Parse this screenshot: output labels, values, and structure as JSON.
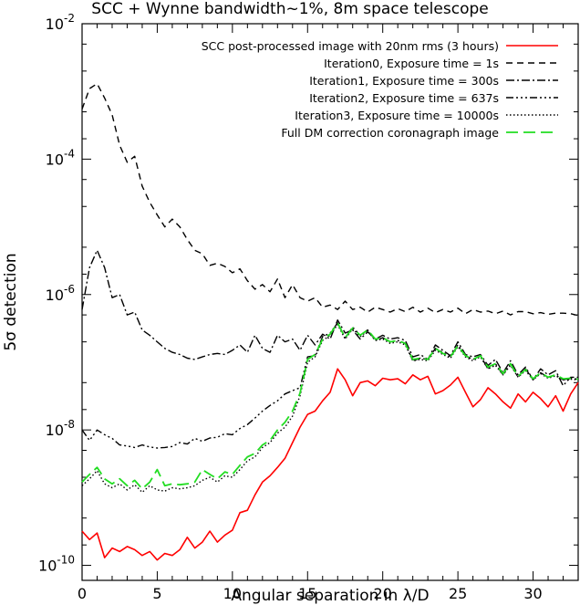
{
  "chart_data": {
    "type": "line",
    "title": "SCC + Wynne bandwidth~1%, 8m space telescope",
    "xlabel": "Angular separation in λ/D",
    "ylabel": "5σ detection",
    "xlim": [
      0,
      33
    ],
    "ylim": [
      6e-11,
      0.01
    ],
    "yscale": "log",
    "x_ticks": [
      0,
      5,
      10,
      15,
      20,
      25,
      30
    ],
    "x_tick_labels": [
      "0",
      "5",
      "10",
      "15",
      "20",
      "25",
      "30"
    ],
    "y_ticks": [
      1e-10,
      1e-08,
      1e-06,
      0.0001,
      0.01
    ],
    "y_tick_labels": [
      {
        "base": "10",
        "exp": "-10"
      },
      {
        "base": "10",
        "exp": "-8"
      },
      {
        "base": "10",
        "exp": "-6"
      },
      {
        "base": "10",
        "exp": "-4"
      },
      {
        "base": "10",
        "exp": "-2"
      }
    ],
    "legend_position": "top-right",
    "grid": false,
    "series": [
      {
        "name": "SCC post-processed image with 20nm rms (3 hours)",
        "color": "#ff0000",
        "style": "solid",
        "x": [
          0,
          0.5,
          1,
          1.5,
          2,
          2.5,
          3,
          3.5,
          4,
          4.5,
          5,
          5.5,
          6,
          6.5,
          7,
          7.5,
          8,
          8.5,
          9,
          9.5,
          10,
          10.5,
          11,
          11.5,
          12,
          12.5,
          13,
          13.5,
          14,
          14.5,
          15,
          15.5,
          16,
          16.5,
          17,
          17.5,
          18,
          18.5,
          19,
          19.5,
          20,
          20.5,
          21,
          21.5,
          22,
          22.5,
          23,
          23.5,
          24,
          24.5,
          25,
          25.5,
          26,
          26.5,
          27,
          27.5,
          28,
          28.5,
          29,
          29.5,
          30,
          30.5,
          31,
          31.5,
          32,
          32.5,
          33
        ],
        "y": [
          3.2e-10,
          2.4e-10,
          3e-10,
          1.3e-10,
          1.8e-10,
          1.6e-10,
          1.9e-10,
          1.7e-10,
          1.4e-10,
          1.6e-10,
          1.2e-10,
          1.5e-10,
          1.4e-10,
          1.7e-10,
          2.6e-10,
          1.8e-10,
          2.2e-10,
          3.2e-10,
          2.2e-10,
          2.8e-10,
          3.3e-10,
          6e-10,
          6.5e-10,
          1.1e-09,
          1.7e-09,
          2.1e-09,
          2.8e-09,
          3.8e-09,
          6.5e-09,
          1.1e-08,
          1.7e-08,
          1.9e-08,
          2.7e-08,
          3.6e-08,
          8e-08,
          5.5e-08,
          3.2e-08,
          5e-08,
          5.3e-08,
          4.5e-08,
          5.8e-08,
          5.5e-08,
          5.7e-08,
          4.8e-08,
          6.5e-08,
          5.5e-08,
          6.2e-08,
          3.4e-08,
          3.8e-08,
          4.6e-08,
          6e-08,
          3.6e-08,
          2.2e-08,
          2.8e-08,
          4.2e-08,
          3.4e-08,
          2.6e-08,
          2.1e-08,
          3.4e-08,
          2.6e-08,
          3.6e-08,
          2.9e-08,
          2.2e-08,
          3.2e-08,
          1.9e-08,
          3.4e-08,
          5e-08
        ]
      },
      {
        "name": "Iteration0, Exposure time = 1s",
        "color": "#000000",
        "style": "dash",
        "x": [
          0,
          0.5,
          1,
          1.5,
          2,
          2.5,
          3,
          3.5,
          4,
          4.5,
          5,
          5.5,
          6,
          6.5,
          7,
          7.5,
          8,
          8.5,
          9,
          9.5,
          10,
          10.5,
          11,
          11.5,
          12,
          12.5,
          13,
          13.5,
          14,
          14.5,
          15,
          15.5,
          16,
          16.5,
          17,
          17.5,
          18,
          18.5,
          19,
          19.5,
          20,
          20.5,
          21,
          21.5,
          22,
          22.5,
          23,
          23.5,
          24,
          24.5,
          25,
          25.5,
          26,
          26.5,
          27,
          27.5,
          28,
          28.5,
          29,
          29.5,
          30,
          30.5,
          31,
          31.5,
          32,
          32.5,
          33
        ],
        "y": [
          0.00055,
          0.0011,
          0.0013,
          0.0008,
          0.00045,
          0.00016,
          9e-05,
          0.00011,
          4e-05,
          2.3e-05,
          1.5e-05,
          1e-05,
          1.3e-05,
          1e-05,
          6.5e-06,
          4.5e-06,
          4e-06,
          2.7e-06,
          2.9e-06,
          2.6e-06,
          2.1e-06,
          2.4e-06,
          1.6e-06,
          1.2e-06,
          1.4e-06,
          1.1e-06,
          1.7e-06,
          9e-07,
          1.4e-06,
          9e-07,
          8e-07,
          9e-07,
          6.5e-07,
          7e-07,
          6e-07,
          8e-07,
          6e-07,
          6.5e-07,
          5.5e-07,
          6.5e-07,
          6e-07,
          5.5e-07,
          6.2e-07,
          5.6e-07,
          6.5e-07,
          5.5e-07,
          6.3e-07,
          5.4e-07,
          6e-07,
          5.5e-07,
          6.3e-07,
          5.2e-07,
          6e-07,
          5.5e-07,
          5.7e-07,
          5.2e-07,
          5.7e-07,
          5e-07,
          5.6e-07,
          5.6e-07,
          5.2e-07,
          5.4e-07,
          5.1e-07,
          5.3e-07,
          5.3e-07,
          5.2e-07,
          4.9e-07
        ]
      },
      {
        "name": "Iteration1, Exposure time = 300s",
        "color": "#000000",
        "style": "dashdot",
        "x": [
          0,
          0.5,
          1,
          1.5,
          2,
          2.5,
          3,
          3.5,
          4,
          4.5,
          5,
          5.5,
          6,
          6.5,
          7,
          7.5,
          8,
          8.5,
          9,
          9.5,
          10,
          10.5,
          11,
          11.5,
          12,
          12.5,
          13,
          13.5,
          14,
          14.5,
          15,
          15.5,
          16,
          16.5,
          17,
          17.5,
          18,
          18.5,
          19,
          19.5,
          20,
          20.5,
          21,
          21.5,
          22,
          22.5,
          23,
          23.5,
          24,
          24.5,
          25,
          25.5,
          26,
          26.5,
          27,
          27.5,
          28,
          28.5,
          29,
          29.5,
          30,
          30.5,
          31,
          31.5,
          32,
          32.5,
          33
        ],
        "y": [
          6e-07,
          2.5e-06,
          4.5e-06,
          2.5e-06,
          9e-07,
          1e-06,
          5e-07,
          5.5e-07,
          3e-07,
          2.5e-07,
          2e-07,
          1.6e-07,
          1.4e-07,
          1.3e-07,
          1.15e-07,
          1.1e-07,
          1.2e-07,
          1.3e-07,
          1.35e-07,
          1.3e-07,
          1.5e-07,
          1.8e-07,
          1.4e-07,
          2.5e-07,
          1.6e-07,
          1.4e-07,
          2.5e-07,
          2e-07,
          2.2e-07,
          1.5e-07,
          2.5e-07,
          1.8e-07,
          2.6e-07,
          2.2e-07,
          4.2e-07,
          2.7e-07,
          3e-07,
          2.2e-07,
          2.8e-07,
          2.2e-07,
          2.5e-07,
          2.2e-07,
          2.3e-07,
          2.1e-07,
          1.2e-07,
          1.3e-07,
          1.1e-07,
          1.8e-07,
          1.5e-07,
          1.25e-07,
          2e-07,
          1.3e-07,
          1.2e-07,
          1.3e-07,
          9e-08,
          1.1e-07,
          7e-08,
          1.05e-07,
          6.5e-08,
          8.5e-08,
          5.5e-08,
          8e-08,
          6.5e-08,
          7.5e-08,
          4.5e-08,
          6e-08,
          6e-08
        ]
      },
      {
        "name": "Iteration2, Exposure time =  637s",
        "color": "#000000",
        "style": "dashdotdotdot",
        "x": [
          0,
          0.5,
          1,
          1.5,
          2,
          2.5,
          3,
          3.5,
          4,
          4.5,
          5,
          5.5,
          6,
          6.5,
          7,
          7.5,
          8,
          8.5,
          9,
          9.5,
          10,
          10.5,
          11,
          11.5,
          12,
          12.5,
          13,
          13.5,
          14,
          14.5,
          15,
          15.5,
          16,
          16.5,
          17,
          17.5,
          18,
          18.5,
          19,
          19.5,
          20,
          20.5,
          21,
          21.5,
          22,
          22.5,
          23,
          23.5,
          24,
          24.5,
          25,
          25.5,
          26,
          26.5,
          27,
          27.5,
          28,
          28.5,
          29,
          29.5,
          30,
          30.5,
          31,
          31.5,
          32,
          32.5,
          33
        ],
        "y": [
          1e-08,
          7e-09,
          1e-08,
          8.5e-09,
          7.5e-09,
          6e-09,
          5.8e-09,
          5.5e-09,
          6e-09,
          5.6e-09,
          5.4e-09,
          5.5e-09,
          5.7e-09,
          6.5e-09,
          6.2e-09,
          7.5e-09,
          6.8e-09,
          7.6e-09,
          7.8e-09,
          8.8e-09,
          8.5e-09,
          1.05e-08,
          1.2e-08,
          1.5e-08,
          1.9e-08,
          2.3e-08,
          2.7e-08,
          3.4e-08,
          3.8e-08,
          4.2e-08,
          1.2e-07,
          1.25e-07,
          2.4e-07,
          2.7e-07,
          3.8e-07,
          2.3e-07,
          3.3e-07,
          2.5e-07,
          3e-07,
          2.1e-07,
          2.3e-07,
          2e-07,
          2.1e-07,
          1.9e-07,
          1.05e-07,
          1.15e-07,
          1.1e-07,
          1.6e-07,
          1.4e-07,
          1.2e-07,
          1.8e-07,
          1.25e-07,
          1.1e-07,
          1.25e-07,
          8e-08,
          9.5e-08,
          6.5e-08,
          9.5e-08,
          6e-08,
          8e-08,
          5.5e-08,
          7e-08,
          6e-08,
          6.5e-08,
          5.5e-08,
          5.8e-08,
          5.6e-08
        ]
      },
      {
        "name": "Iteration3, Exposure time = 10000s",
        "color": "#000000",
        "style": "dot",
        "x": [
          0,
          0.5,
          1,
          1.5,
          2,
          2.5,
          3,
          3.5,
          4,
          4.5,
          5,
          5.5,
          6,
          6.5,
          7,
          7.5,
          8,
          8.5,
          9,
          9.5,
          10,
          10.5,
          11,
          11.5,
          12,
          12.5,
          13,
          13.5,
          14,
          14.5,
          15,
          15.5,
          16,
          16.5,
          17,
          17.5,
          18,
          18.5,
          19,
          19.5,
          20,
          20.5,
          21,
          21.5,
          22,
          22.5,
          23,
          23.5,
          24,
          24.5,
          25,
          25.5,
          26,
          26.5,
          27,
          27.5,
          28,
          28.5,
          29,
          29.5,
          30,
          30.5,
          31,
          31.5,
          32,
          32.5,
          33
        ],
        "y": [
          1.5e-09,
          1.9e-09,
          2.5e-09,
          1.6e-09,
          1.4e-09,
          1.6e-09,
          1.3e-09,
          1.55e-09,
          1.2e-09,
          1.5e-09,
          1.3e-09,
          1.25e-09,
          1.4e-09,
          1.35e-09,
          1.4e-09,
          1.5e-09,
          1.8e-09,
          2e-09,
          1.7e-09,
          2.1e-09,
          2e-09,
          2.6e-09,
          3.5e-09,
          4e-09,
          5.5e-09,
          6.5e-09,
          9e-09,
          1.1e-08,
          1.6e-08,
          3.2e-08,
          1e-07,
          1.2e-07,
          2.1e-07,
          2.5e-07,
          3.6e-07,
          2.2e-07,
          3.1e-07,
          2.4e-07,
          2.9e-07,
          2.1e-07,
          2.2e-07,
          1.9e-07,
          2e-07,
          1.8e-07,
          1.05e-07,
          1.1e-07,
          1.05e-07,
          1.5e-07,
          1.3e-07,
          1.15e-07,
          1.7e-07,
          1.2e-07,
          1.05e-07,
          1.2e-07,
          8e-08,
          9e-08,
          6.5e-08,
          9e-08,
          6e-08,
          7.5e-08,
          5.5e-08,
          6.8e-08,
          5.8e-08,
          6.3e-08,
          5.5e-08,
          5.6e-08,
          5.5e-08
        ]
      },
      {
        "name": "Full DM correction coronagraph image",
        "color": "#22dd22",
        "style": "longdash",
        "x": [
          0,
          0.5,
          1,
          1.5,
          2,
          2.5,
          3,
          3.5,
          4,
          4.5,
          5,
          5.5,
          6,
          6.5,
          7,
          7.5,
          8,
          8.5,
          9,
          9.5,
          10,
          10.5,
          11,
          11.5,
          12,
          12.5,
          13,
          13.5,
          14,
          14.5,
          15,
          15.5,
          16,
          16.5,
          17,
          17.5,
          18,
          18.5,
          19,
          19.5,
          20,
          20.5,
          21,
          21.5,
          22,
          22.5,
          23,
          23.5,
          24,
          24.5,
          25,
          25.5,
          26,
          26.5,
          27,
          27.5,
          28,
          28.5,
          29,
          29.5,
          30,
          30.5,
          31,
          31.5,
          32,
          32.5,
          33
        ],
        "y": [
          1.7e-09,
          2.2e-09,
          2.8e-09,
          1.9e-09,
          1.6e-09,
          1.9e-09,
          1.5e-09,
          1.8e-09,
          1.35e-09,
          1.7e-09,
          2.6e-09,
          1.5e-09,
          1.6e-09,
          1.55e-09,
          1.6e-09,
          1.7e-09,
          2.6e-09,
          2.2e-09,
          1.9e-09,
          2.4e-09,
          2.2e-09,
          3e-09,
          4e-09,
          4.5e-09,
          6e-09,
          7e-09,
          1e-08,
          1.3e-08,
          1.9e-08,
          3.5e-08,
          1.1e-07,
          1.3e-07,
          2.2e-07,
          2.6e-07,
          3.8e-07,
          2.3e-07,
          3.2e-07,
          2.5e-07,
          3e-07,
          2.2e-07,
          2.3e-07,
          2e-07,
          2.1e-07,
          1.9e-07,
          1.1e-07,
          1.15e-07,
          1.1e-07,
          1.6e-07,
          1.35e-07,
          1.2e-07,
          1.75e-07,
          1.25e-07,
          1.1e-07,
          1.25e-07,
          8.5e-08,
          9.5e-08,
          6.8e-08,
          9.5e-08,
          6.2e-08,
          7.8e-08,
          5.7e-08,
          7e-08,
          6e-08,
          6.5e-08,
          5.7e-08,
          5.8e-08,
          5.6e-08
        ]
      }
    ]
  }
}
